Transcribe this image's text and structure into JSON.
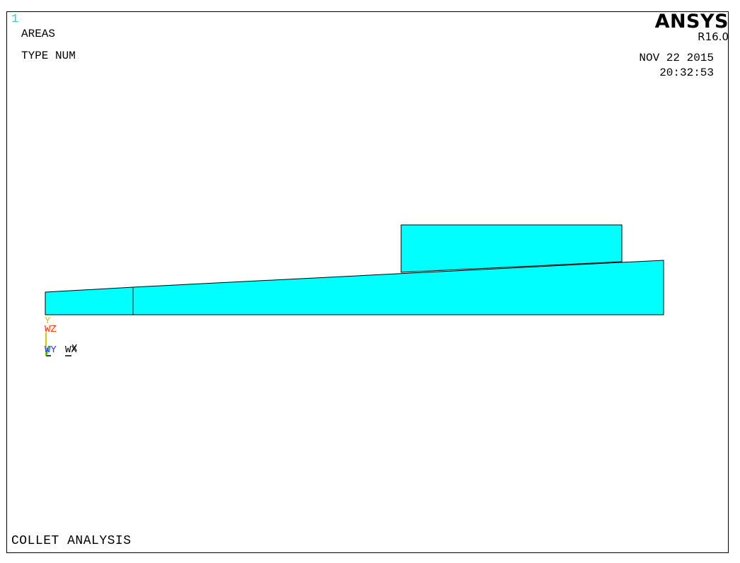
{
  "window": {
    "number": "1"
  },
  "header": {
    "plot_type": "AREAS",
    "numbering": "TYPE NUM",
    "date": "NOV 22 2015",
    "time": "20:32:53"
  },
  "brand": {
    "name": "ANSYS",
    "version": "R16.0"
  },
  "footer": {
    "title": "COLLET ANALYSIS"
  },
  "triad": {
    "y_label": "Y",
    "wz_label": "WZ",
    "wy_label": "WY",
    "wx_label": "WX",
    "x_label": "X"
  },
  "colors": {
    "area_fill": "#00ffff",
    "area_edge": "#000000",
    "window_number": "#33cccc",
    "axis_y": "#cccc00",
    "axis_z": "#ff3300",
    "axis_wy": "#3333ff"
  },
  "areas": {
    "count": 3
  }
}
